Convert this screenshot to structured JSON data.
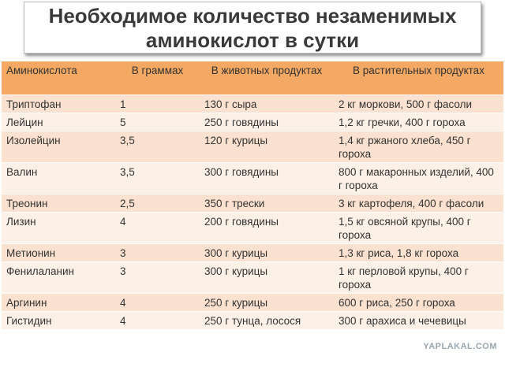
{
  "header": {
    "title_line1": "Необходимое количество незаменимых",
    "title_line2": "аминокислот в сутки"
  },
  "table": {
    "columns": [
      "Аминокислота",
      "В граммах",
      "В животных продуктах",
      "В растительных продуктах"
    ],
    "rows": [
      [
        "Триптофан",
        "1",
        "130 г сыра",
        "2 кг моркови, 500 г фасоли"
      ],
      [
        "Лейцин",
        "5",
        "250 г говядины",
        "1,2 кг гречки, 400 г гороха"
      ],
      [
        "Изолейцин",
        "3,5",
        "120 г курицы",
        "1,4 кг ржаного хлеба, 450 г гороха"
      ],
      [
        "Валин",
        "3,5",
        "300 г говядины",
        "800 г макаронных изделий,  400 г гороха"
      ],
      [
        "Треонин",
        "2,5",
        "350 г трески",
        "3 кг картофеля, 400 г фасоли"
      ],
      [
        "Лизин",
        "4",
        "200 г говядины",
        "1,5 кг овсяной крупы, 400 г гороха"
      ],
      [
        "Метионин",
        "3",
        "300 г курицы",
        "1,3 кг риса, 1,8 кг гороха"
      ],
      [
        "Фенилаланин",
        "3",
        "300 г курицы",
        "1 кг перловой крупы, 400 г гороха"
      ],
      [
        "Аргинин",
        "4",
        "250 г курицы",
        "600 г риса, 250 г гороха"
      ],
      [
        "Гистидин",
        "4",
        "250 г тунца, лосося",
        "300 г арахиса и чечевицы"
      ]
    ]
  },
  "watermark": "YAPLAKAL.COM"
}
